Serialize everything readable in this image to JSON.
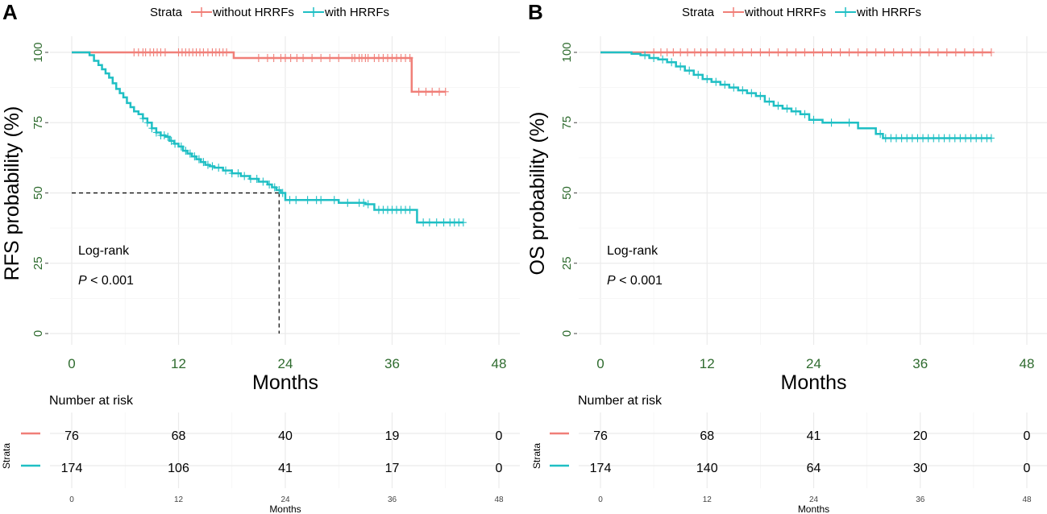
{
  "colors": {
    "without": "#f07f78",
    "with": "#1fbfc4",
    "tick_text": "#2e6b2e",
    "grid": "#ebebeb",
    "grid_minor": "#f4f4f4"
  },
  "chart_data": [
    {
      "panel_label": "A",
      "type": "line",
      "subtype": "kaplan-meier",
      "legend": {
        "title": "Strata",
        "entries": [
          "without HRRFs",
          "with HRRFs"
        ],
        "position": "top"
      },
      "xlabel": "Months",
      "ylabel": "RFS probability (%)",
      "xlim": [
        0,
        48
      ],
      "ylim": [
        0,
        100
      ],
      "xticks": [
        0,
        12,
        24,
        36,
        48
      ],
      "yticks": [
        0,
        25,
        50,
        75,
        100
      ],
      "xtick_labels": [
        "0",
        "12",
        "24",
        "36",
        "48"
      ],
      "ytick_labels": [
        "0",
        "25",
        "50",
        "75",
        "100"
      ],
      "annotation": {
        "line1": "Log-rank",
        "p_symbol": "P",
        "p_text": " < 0.001"
      },
      "median_line": {
        "y": 50,
        "x": 23.3
      },
      "series": [
        {
          "name": "without HRRFs",
          "x": [
            0,
            18.2,
            38.2,
            42
          ],
          "y": [
            100,
            98,
            86,
            86
          ],
          "censor_x": [
            7,
            7.5,
            8,
            8.3,
            8.8,
            9.2,
            9.6,
            10,
            10.5,
            12,
            12.4,
            12.8,
            13.2,
            13.6,
            14,
            14.4,
            14.8,
            15.3,
            15.8,
            16.2,
            16.6,
            17,
            17.4,
            21,
            22,
            22.7,
            23.5,
            24,
            24.6,
            25.3,
            26,
            27,
            28,
            29,
            30,
            31.5,
            32.3,
            33,
            31.8,
            32.6,
            33.3,
            34,
            34.5,
            35,
            35.5,
            36,
            36.5,
            37,
            37.5,
            38,
            39,
            39.8,
            40.5,
            41.3,
            42
          ]
        },
        {
          "name": "with HRRFs",
          "x": [
            0,
            2,
            2.5,
            3,
            3.4,
            3.8,
            4.2,
            4.6,
            5,
            5.4,
            5.8,
            6.2,
            6.6,
            7,
            7.5,
            8,
            8.5,
            9,
            9.5,
            10,
            10.5,
            11,
            11.5,
            12,
            12.5,
            13,
            13.5,
            14,
            14.5,
            15,
            15.5,
            16,
            17,
            18,
            19,
            20,
            21,
            22,
            22.5,
            23,
            23.5,
            24,
            26,
            28,
            30,
            33,
            34,
            38.8,
            44
          ],
          "y": [
            100,
            99,
            97,
            95.5,
            94,
            92.5,
            91,
            89,
            87,
            85.5,
            84,
            82,
            80.5,
            79,
            78,
            76.5,
            75,
            73,
            71.5,
            70.5,
            70,
            68.5,
            67.5,
            66.5,
            65,
            64,
            63,
            62,
            61,
            60,
            59.5,
            59,
            58,
            57,
            56,
            55,
            54,
            53,
            52,
            51,
            50,
            47.5,
            47.5,
            47.5,
            46.5,
            46,
            44,
            39.5,
            39.5
          ],
          "censor_x": [
            8,
            8.5,
            9,
            9.5,
            10,
            10.4,
            10.8,
            11.2,
            11.6,
            12.3,
            12.8,
            13.3,
            13.8,
            14.3,
            14.8,
            15.3,
            15.8,
            16.5,
            17.3,
            18,
            18.7,
            19.4,
            20.1,
            20.8,
            21.5,
            22.2,
            22.8,
            23.3,
            23.7,
            24.5,
            25.2,
            26.5,
            27.5,
            28,
            29.5,
            31,
            32.3,
            32.8,
            33.3,
            34.5,
            35,
            35.5,
            36,
            36.5,
            37,
            37.5,
            38,
            39.5,
            40.2,
            41,
            41.8,
            42.5,
            43,
            43.5,
            44
          ]
        }
      ],
      "risk_table": {
        "title": "Number at risk",
        "strata_label": "Strata",
        "xlabel": "Months",
        "time_points": [
          0,
          12,
          24,
          36,
          48
        ],
        "tick_labels": [
          "0",
          "12",
          "24",
          "36",
          "48"
        ],
        "rows": [
          {
            "name": "without HRRFs",
            "values": [
              "76",
              "68",
              "40",
              "19",
              "0"
            ]
          },
          {
            "name": "with HRRFs",
            "values": [
              "174",
              "106",
              "41",
              "17",
              "0"
            ]
          }
        ]
      }
    },
    {
      "panel_label": "B",
      "type": "line",
      "subtype": "kaplan-meier",
      "legend": {
        "title": "Strata",
        "entries": [
          "without HRRFs",
          "with HRRFs"
        ],
        "position": "top"
      },
      "xlabel": "Months",
      "ylabel": "OS probability (%)",
      "xlim": [
        0,
        48
      ],
      "ylim": [
        0,
        100
      ],
      "xticks": [
        0,
        12,
        24,
        36,
        48
      ],
      "yticks": [
        0,
        25,
        50,
        75,
        100
      ],
      "xtick_labels": [
        "0",
        "12",
        "24",
        "36",
        "48"
      ],
      "ytick_labels": [
        "0",
        "25",
        "50",
        "75",
        "100"
      ],
      "annotation": {
        "line1": "Log-rank",
        "p_symbol": "P",
        "p_text": " < 0.001"
      },
      "series": [
        {
          "name": "without HRRFs",
          "x": [
            0,
            44
          ],
          "y": [
            100,
            100
          ],
          "censor_x": [
            6,
            6.8,
            7.5,
            8.2,
            9,
            9.8,
            10.6,
            11.3,
            12,
            13,
            14,
            15,
            16,
            17,
            18,
            19,
            20,
            21,
            22,
            23,
            24,
            25,
            26,
            27,
            28,
            29,
            30,
            31,
            32,
            33,
            34,
            35,
            36,
            37,
            38,
            39,
            40,
            41,
            42,
            43,
            44
          ]
        },
        {
          "name": "with HRRFs",
          "x": [
            0,
            3.5,
            4.5,
            5.5,
            6.5,
            7.5,
            8.5,
            9.5,
            10.5,
            11.5,
            12.5,
            13.5,
            14.5,
            15.5,
            16.5,
            17.5,
            18.5,
            19.5,
            20.5,
            21.5,
            22.5,
            23.5,
            25,
            29,
            31,
            31.8,
            44
          ],
          "y": [
            100,
            99.5,
            99,
            98,
            97.5,
            96.5,
            95,
            93.5,
            92,
            90.5,
            89.5,
            88.5,
            87.5,
            86.5,
            85.5,
            84.5,
            82.5,
            81,
            80,
            79,
            78,
            76,
            75,
            73,
            71,
            69.5,
            69.5
          ],
          "censor_x": [
            5,
            6,
            7,
            8,
            9,
            10,
            11,
            12,
            13,
            14,
            15,
            16,
            17,
            18,
            19,
            20,
            21,
            22,
            23,
            24,
            26,
            28,
            31.5,
            32.1,
            32.7,
            33.3,
            33.9,
            34.5,
            35.1,
            35.7,
            36.3,
            36.9,
            37.5,
            38.1,
            38.7,
            39.3,
            39.9,
            40.5,
            41.1,
            41.7,
            42.3,
            42.9,
            43.5,
            44
          ]
        }
      ],
      "risk_table": {
        "title": "Number at risk",
        "strata_label": "Strata",
        "xlabel": "Months",
        "time_points": [
          0,
          12,
          24,
          36,
          48
        ],
        "tick_labels": [
          "0",
          "12",
          "24",
          "36",
          "48"
        ],
        "rows": [
          {
            "name": "without HRRFs",
            "values": [
              "76",
              "68",
              "41",
              "20",
              "0"
            ]
          },
          {
            "name": "with HRRFs",
            "values": [
              "174",
              "140",
              "64",
              "30",
              "0"
            ]
          }
        ]
      }
    }
  ]
}
